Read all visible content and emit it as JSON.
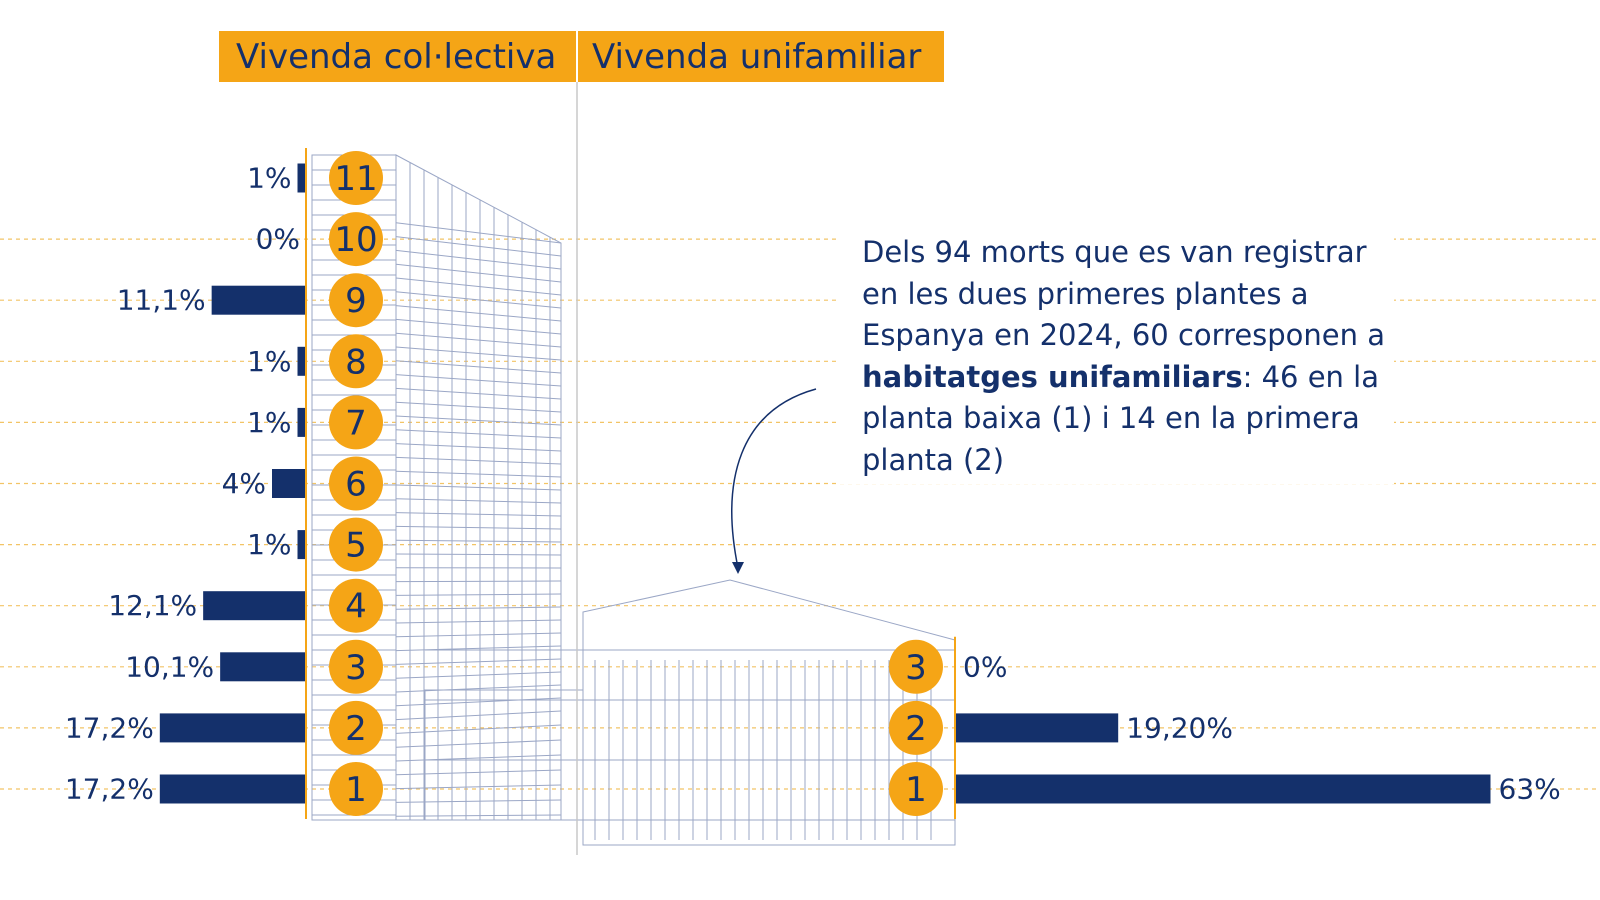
{
  "chart_data": [
    {
      "type": "bar",
      "orientation": "horizontal",
      "direction": "left",
      "title": "Vivenda col·lectiva",
      "categories": [
        "11",
        "10",
        "9",
        "8",
        "7",
        "6",
        "5",
        "4",
        "3",
        "2",
        "1"
      ],
      "values": [
        1,
        0,
        11.1,
        1,
        1,
        4,
        1,
        12.1,
        10.1,
        17.2,
        17.2
      ],
      "value_labels": [
        "1%",
        "0%",
        "11,1%",
        "1%",
        "1%",
        "4%",
        "1%",
        "12,1%",
        "10,1%",
        "17,2%",
        "17,2%"
      ],
      "color": "#14306b"
    },
    {
      "type": "bar",
      "orientation": "horizontal",
      "direction": "right",
      "title": "Vivenda unifamiliar",
      "categories": [
        "3",
        "2",
        "1"
      ],
      "values": [
        0,
        19.2,
        63
      ],
      "value_labels": [
        "0%",
        "19,20%",
        "63%"
      ],
      "color": "#14306b",
      "annotation": [
        "Dels 94 morts que es van registrar en les dues primeres plantes a Espanya en 2024, 60 corresponen a ",
        "habitatges unifamiliars",
        ": 46 en la planta baixa (1) i 14 en la primera planta (2)"
      ]
    }
  ]
}
